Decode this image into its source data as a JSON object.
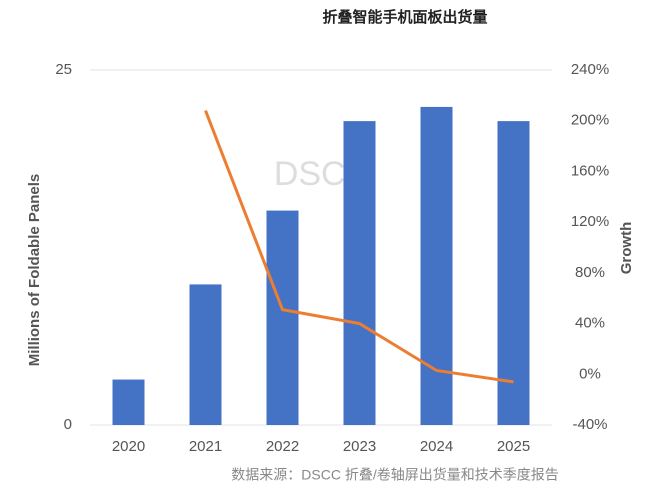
{
  "chart_data": {
    "type": "bar_line",
    "title": "折叠智能手机面板出货量",
    "source": "数据来源：DSCC 折叠/卷轴屏出货量和技术季度报告",
    "watermark": "DSCC",
    "categories": [
      "2020",
      "2021",
      "2022",
      "2023",
      "2024",
      "2025"
    ],
    "ylabel": "Millions of Foldable Panels",
    "y2label": "Growth",
    "series": [
      {
        "name": "Foldable Panels",
        "type": "bar",
        "color": "#4472c4",
        "values": [
          3.2,
          9.9,
          15.1,
          21.4,
          22.4,
          21.4
        ]
      },
      {
        "name": "Growth",
        "type": "line",
        "axis": "y2",
        "color": "#ed7d31",
        "values": [
          null,
          208,
          51,
          40,
          3,
          -6
        ]
      }
    ],
    "ylim": [
      0,
      25
    ],
    "yticks": [
      0,
      25
    ],
    "y2lim": [
      -40,
      240
    ],
    "y2ticks": [
      {
        "value": -40,
        "label": "-40%"
      },
      {
        "value": 0,
        "label": "0%"
      },
      {
        "value": 40,
        "label": "40%"
      },
      {
        "value": 80,
        "label": "80%"
      },
      {
        "value": 120,
        "label": "120%"
      },
      {
        "value": 160,
        "label": "160%"
      },
      {
        "value": 200,
        "label": "200%"
      },
      {
        "value": 240,
        "label": "240%"
      }
    ],
    "grid": true
  }
}
